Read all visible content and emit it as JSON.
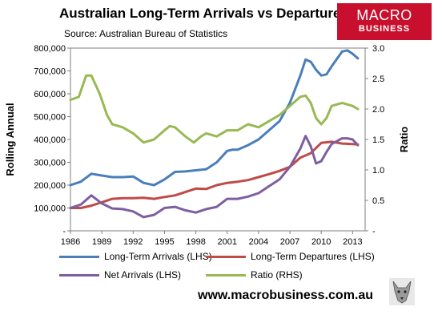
{
  "header": {
    "title": "Australian Long-Term Arrivals vs Departures",
    "source": "Source: Australian Bureau of Statistics",
    "logo_line1": "MACRO",
    "logo_line2": "BUSINESS",
    "logo_color": "#c8102e"
  },
  "footer": {
    "url": "www.macrobusiness.com.au",
    "mascot_icon": "wolf-icon"
  },
  "chart_data": {
    "type": "line",
    "x_ticks": [
      "1986",
      "1989",
      "1992",
      "1995",
      "1998",
      "2001",
      "2004",
      "2007",
      "2010",
      "2013"
    ],
    "xlim": [
      1986,
      2014.2
    ],
    "ylabel_left": "Rolling Annual",
    "ylabel_right": "Ratio",
    "y_left_ticks": [
      "-",
      "100,000",
      "200,000",
      "300,000",
      "400,000",
      "500,000",
      "600,000",
      "700,000",
      "800,000"
    ],
    "ylim_left": [
      0,
      800000
    ],
    "y_right_ticks": [
      "-",
      "0.5",
      "1.0",
      "1.5",
      "2.0",
      "2.5",
      "3.0"
    ],
    "ylim_right": [
      0,
      3.0
    ],
    "grid": false,
    "legend_position": "bottom",
    "series": [
      {
        "name": "Long-Term Arrivals (LHS)",
        "axis": "left",
        "color": "#4a7ebb",
        "x": [
          1986,
          1987,
          1988,
          1989,
          1990,
          1991,
          1992,
          1993,
          1994,
          1995,
          1996,
          1997,
          1998,
          1999,
          2000,
          2001,
          2001.5,
          2002,
          2003,
          2004,
          2005,
          2006,
          2007,
          2008,
          2008.5,
          2009,
          2009.5,
          2010,
          2010.5,
          2011,
          2012,
          2012.5,
          2013,
          2013.5
        ],
        "values": [
          200000,
          215000,
          250000,
          242000,
          235000,
          235000,
          238000,
          210000,
          200000,
          225000,
          258000,
          260000,
          265000,
          270000,
          300000,
          350000,
          355000,
          355000,
          375000,
          400000,
          440000,
          480000,
          560000,
          680000,
          750000,
          740000,
          705000,
          680000,
          685000,
          720000,
          785000,
          790000,
          775000,
          755000
        ]
      },
      {
        "name": "Long-Term Departures (LHS)",
        "axis": "left",
        "color": "#be4b48",
        "x": [
          1986,
          1987,
          1988,
          1989,
          1990,
          1991,
          1992,
          1993,
          1994,
          1995,
          1996,
          1997,
          1998,
          1999,
          2000,
          2001,
          2002,
          2003,
          2004,
          2005,
          2006,
          2007,
          2008,
          2009,
          2010,
          2011,
          2012,
          2013,
          2013.5
        ],
        "values": [
          100000,
          100000,
          110000,
          125000,
          140000,
          143000,
          143000,
          145000,
          140000,
          148000,
          155000,
          170000,
          185000,
          183000,
          200000,
          210000,
          215000,
          222000,
          235000,
          248000,
          262000,
          280000,
          320000,
          340000,
          385000,
          390000,
          382000,
          380000,
          378000
        ]
      },
      {
        "name": "Net Arrivals (LHS)",
        "axis": "left",
        "color": "#7d5fa0",
        "x": [
          1986,
          1987,
          1988,
          1989,
          1990,
          1991,
          1992,
          1993,
          1994,
          1995,
          1996,
          1997,
          1998,
          1999,
          2000,
          2001,
          2002,
          2003,
          2004,
          2005,
          2006,
          2007,
          2008,
          2008.5,
          2009,
          2009.5,
          2010,
          2010.5,
          2011,
          2012,
          2012.5,
          2013,
          2013.5
        ],
        "values": [
          100000,
          115000,
          155000,
          120000,
          98000,
          95000,
          85000,
          60000,
          70000,
          100000,
          105000,
          90000,
          80000,
          95000,
          105000,
          140000,
          140000,
          150000,
          165000,
          195000,
          225000,
          280000,
          360000,
          415000,
          370000,
          295000,
          305000,
          345000,
          380000,
          405000,
          405000,
          400000,
          375000
        ]
      },
      {
        "name": "Ratio (RHS)",
        "axis": "right",
        "color": "#98b954",
        "x": [
          1986,
          1986.8,
          1987.5,
          1988,
          1988.8,
          1989.5,
          1990,
          1991,
          1992,
          1993,
          1994,
          1995,
          1995.5,
          1996,
          1997,
          1997.8,
          1998.5,
          1999,
          2000,
          2001,
          2002,
          2003,
          2004,
          2005,
          2006,
          2007,
          2008,
          2008.5,
          2009,
          2009.5,
          2010,
          2010.5,
          2011,
          2012,
          2013,
          2013.5
        ],
        "values": [
          2.15,
          2.2,
          2.55,
          2.55,
          2.25,
          1.9,
          1.75,
          1.7,
          1.6,
          1.45,
          1.5,
          1.65,
          1.72,
          1.7,
          1.55,
          1.45,
          1.55,
          1.6,
          1.55,
          1.65,
          1.65,
          1.75,
          1.7,
          1.8,
          1.9,
          2.05,
          2.2,
          2.22,
          2.1,
          1.85,
          1.75,
          1.85,
          2.05,
          2.1,
          2.05,
          2.0
        ]
      }
    ]
  }
}
